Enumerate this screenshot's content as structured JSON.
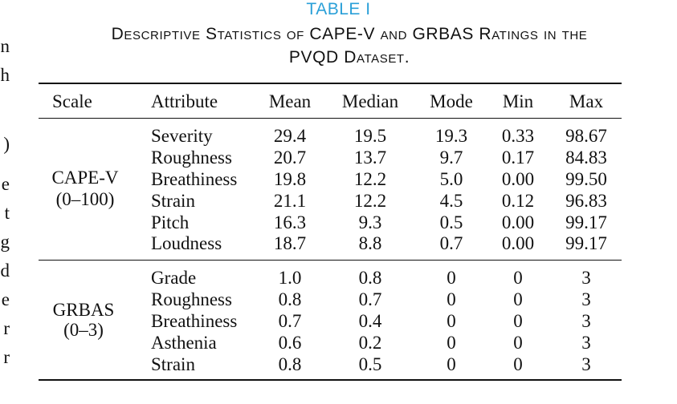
{
  "left_margin_fragments": [
    "n",
    "h",
    ")",
    "e",
    "t",
    "g",
    "d",
    "e",
    "r",
    "r"
  ],
  "table_label": "TABLE I",
  "caption_line1": "Descriptive Statistics of CAPE-V and GRBAS Ratings in the",
  "caption_line2": "PVQD Dataset.",
  "header": [
    "Scale",
    "Attribute",
    "Mean",
    "Median",
    "Mode",
    "Min",
    "Max"
  ],
  "groups": [
    {
      "scale": "CAPE-V",
      "range": "(0–100)",
      "rows": [
        [
          "Severity",
          "29.4",
          "19.5",
          "19.3",
          "0.33",
          "98.67"
        ],
        [
          "Roughness",
          "20.7",
          "13.7",
          "9.7",
          "0.17",
          "84.83"
        ],
        [
          "Breathiness",
          "19.8",
          "12.2",
          "5.0",
          "0.00",
          "99.50"
        ],
        [
          "Strain",
          "21.1",
          "12.2",
          "4.5",
          "0.12",
          "96.83"
        ],
        [
          "Pitch",
          "16.3",
          "9.3",
          "0.5",
          "0.00",
          "99.17"
        ],
        [
          "Loudness",
          "18.7",
          "8.8",
          "0.7",
          "0.00",
          "99.17"
        ]
      ]
    },
    {
      "scale": "GRBAS",
      "range": "(0–3)",
      "rows": [
        [
          "Grade",
          "1.0",
          "0.8",
          "0",
          "0",
          "3"
        ],
        [
          "Roughness",
          "0.8",
          "0.7",
          "0",
          "0",
          "3"
        ],
        [
          "Breathiness",
          "0.7",
          "0.4",
          "0",
          "0",
          "3"
        ],
        [
          "Asthenia",
          "0.6",
          "0.2",
          "0",
          "0",
          "3"
        ],
        [
          "Strain",
          "0.8",
          "0.5",
          "0",
          "0",
          "3"
        ]
      ]
    }
  ]
}
